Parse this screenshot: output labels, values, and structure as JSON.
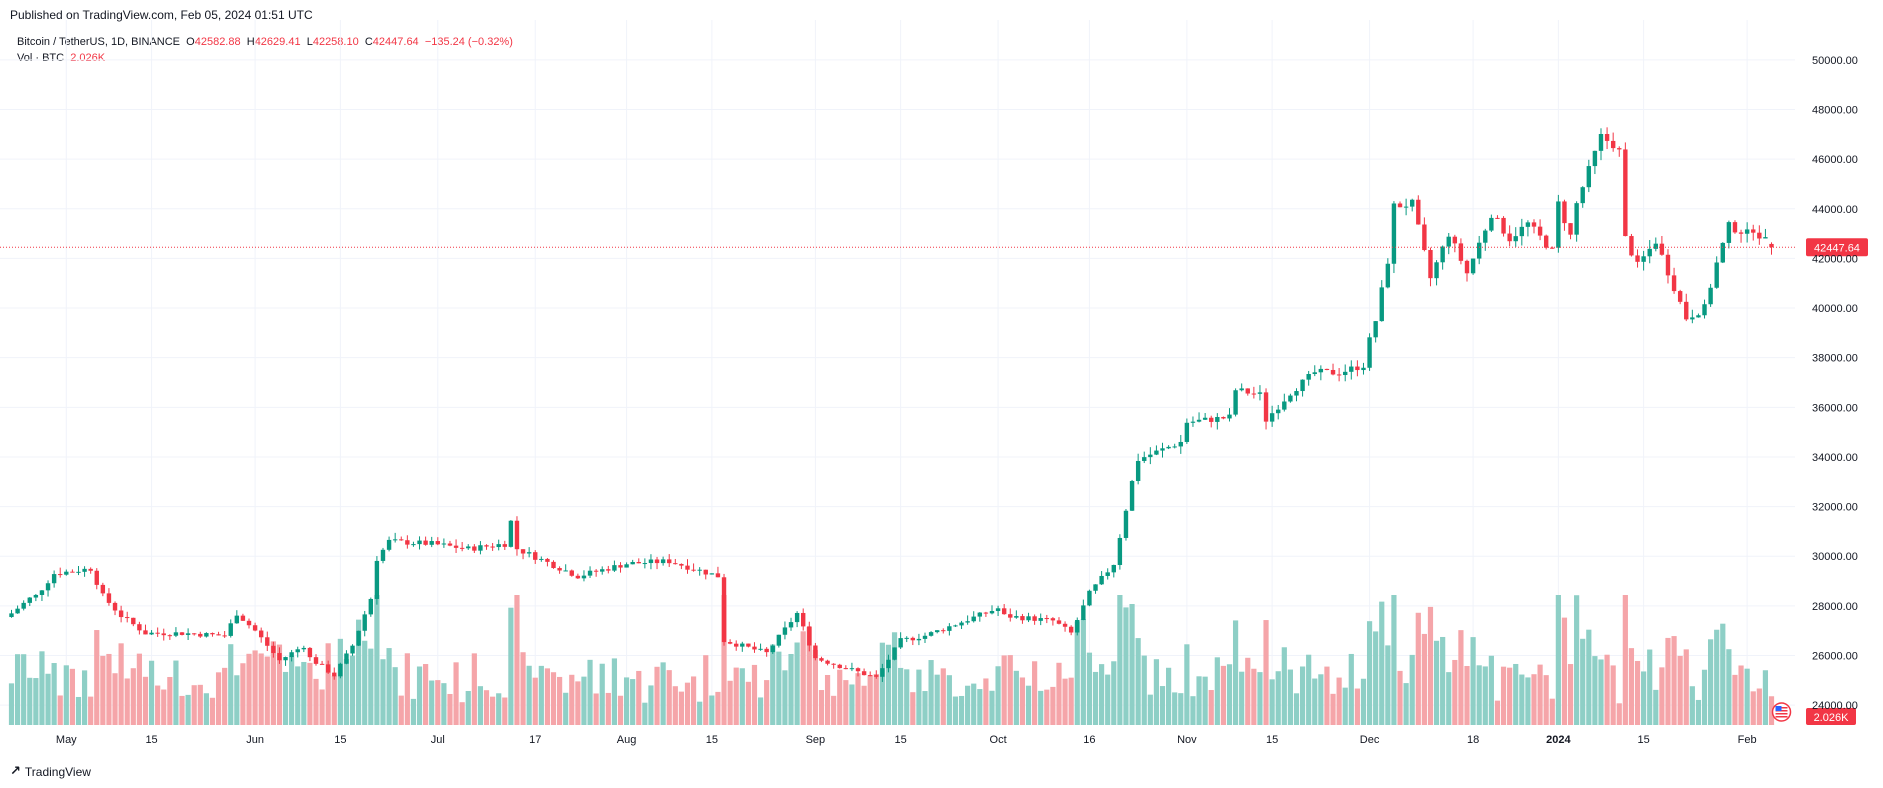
{
  "header": {
    "published": "Published on TradingView.com, Feb 05, 2024 01:51 UTC"
  },
  "legend": {
    "symbol": "Bitcoin / TetherUS, 1D, BINANCE",
    "open_label": "O",
    "open": "42582.88",
    "high_label": "H",
    "high": "42629.41",
    "low_label": "L",
    "low": "42258.10",
    "close_label": "C",
    "close": "42447.64",
    "change": "−135.24 (−0.32%)",
    "vol_label": "Vol · BTC",
    "vol_value": "2.026K"
  },
  "footer": {
    "brand": "TradingView",
    "logo_icon": "tradingview-logo-icon"
  },
  "colors": {
    "up": "#089981",
    "down": "#f23645",
    "vol_up": "#8ecfc6",
    "vol_down": "#f5a5a9",
    "grid": "#f0f3fa",
    "text": "#131722"
  },
  "chart_data": {
    "type": "candlestick",
    "symbol": "Bitcoin / TetherUS",
    "interval": "1D",
    "exchange": "BINANCE",
    "start_date": "2023-04-22",
    "y_axis": {
      "ticks": [
        "24000.00",
        "26000.00",
        "28000.00",
        "30000.00",
        "32000.00",
        "34000.00",
        "36000.00",
        "38000.00",
        "40000.00",
        "42000.00",
        "44000.00",
        "46000.00",
        "48000.00",
        "50000.00"
      ],
      "range": [
        23200,
        50800
      ]
    },
    "x_axis": {
      "ticks": [
        {
          "date": "2023-05-01",
          "label": "May"
        },
        {
          "date": "2023-05-15",
          "label": "15"
        },
        {
          "date": "2023-06-01",
          "label": "Jun"
        },
        {
          "date": "2023-06-15",
          "label": "15"
        },
        {
          "date": "2023-07-01",
          "label": "Jul"
        },
        {
          "date": "2023-07-17",
          "label": "17"
        },
        {
          "date": "2023-08-01",
          "label": "Aug"
        },
        {
          "date": "2023-08-15",
          "label": "15"
        },
        {
          "date": "2023-09-01",
          "label": "Sep"
        },
        {
          "date": "2023-09-15",
          "label": "15"
        },
        {
          "date": "2023-10-01",
          "label": "Oct"
        },
        {
          "date": "2023-10-16",
          "label": "16"
        },
        {
          "date": "2023-11-01",
          "label": "Nov"
        },
        {
          "date": "2023-11-15",
          "label": "15"
        },
        {
          "date": "2023-12-01",
          "label": "Dec"
        },
        {
          "date": "2023-12-18",
          "label": "18"
        },
        {
          "date": "2024-01-01",
          "label": "2024"
        },
        {
          "date": "2024-01-15",
          "label": "15"
        },
        {
          "date": "2024-02-01",
          "label": "Feb"
        }
      ]
    },
    "last_price": "42447.64",
    "last_volume": "2.026K",
    "close_anchors": [
      [
        "2023-04-22",
        27700
      ],
      [
        "2023-04-25",
        28300
      ],
      [
        "2023-04-26",
        28400
      ],
      [
        "2023-04-29",
        29300
      ],
      [
        "2023-05-05",
        29500
      ],
      [
        "2023-05-07",
        28400
      ],
      [
        "2023-05-10",
        27600
      ],
      [
        "2023-05-14",
        26900
      ],
      [
        "2023-05-20",
        26900
      ],
      [
        "2023-05-27",
        26800
      ],
      [
        "2023-05-29",
        27700
      ],
      [
        "2023-06-01",
        27000
      ],
      [
        "2023-06-05",
        25800
      ],
      [
        "2023-06-09",
        26400
      ],
      [
        "2023-06-10",
        25900
      ],
      [
        "2023-06-14",
        25200
      ],
      [
        "2023-06-17",
        26400
      ],
      [
        "2023-06-20",
        28300
      ],
      [
        "2023-06-21",
        29900
      ],
      [
        "2023-06-23",
        30600
      ],
      [
        "2023-06-30",
        30500
      ],
      [
        "2023-07-06",
        30300
      ],
      [
        "2023-07-12",
        30500
      ],
      [
        "2023-07-13",
        31400
      ],
      [
        "2023-07-14",
        30300
      ],
      [
        "2023-07-24",
        29200
      ],
      [
        "2023-08-01",
        29700
      ],
      [
        "2023-08-08",
        29800
      ],
      [
        "2023-08-16",
        29200
      ],
      [
        "2023-08-17",
        26600
      ],
      [
        "2023-08-24",
        26100
      ],
      [
        "2023-08-29",
        27700
      ],
      [
        "2023-09-01",
        25900
      ],
      [
        "2023-09-11",
        25100
      ],
      [
        "2023-09-15",
        26600
      ],
      [
        "2023-09-19",
        26800
      ],
      [
        "2023-10-01",
        27900
      ],
      [
        "2023-10-02",
        27600
      ],
      [
        "2023-10-10",
        27400
      ],
      [
        "2023-10-13",
        26900
      ],
      [
        "2023-10-16",
        28500
      ],
      [
        "2023-10-20",
        29700
      ],
      [
        "2023-10-23",
        33000
      ],
      [
        "2023-10-24",
        33900
      ],
      [
        "2023-10-31",
        34600
      ],
      [
        "2023-11-01",
        35400
      ],
      [
        "2023-11-08",
        35600
      ],
      [
        "2023-11-09",
        36700
      ],
      [
        "2023-11-13",
        36500
      ],
      [
        "2023-11-14",
        35500
      ],
      [
        "2023-11-18",
        36600
      ],
      [
        "2023-11-22",
        37400
      ],
      [
        "2023-11-26",
        37400
      ],
      [
        "2023-11-30",
        37700
      ],
      [
        "2023-12-01",
        38700
      ],
      [
        "2023-12-02",
        39500
      ],
      [
        "2023-12-04",
        41900
      ],
      [
        "2023-12-05",
        44100
      ],
      [
        "2023-12-08",
        44200
      ],
      [
        "2023-12-11",
        41200
      ],
      [
        "2023-12-14",
        43000
      ],
      [
        "2023-12-17",
        41400
      ],
      [
        "2023-12-21",
        43800
      ],
      [
        "2023-12-24",
        42800
      ],
      [
        "2023-12-27",
        43400
      ],
      [
        "2023-12-31",
        42300
      ],
      [
        "2024-01-01",
        44200
      ],
      [
        "2024-01-03",
        42900
      ],
      [
        "2024-01-04",
        44200
      ],
      [
        "2024-01-08",
        46900
      ],
      [
        "2024-01-10",
        46600
      ],
      [
        "2024-01-11",
        46300
      ],
      [
        "2024-01-12",
        42800
      ],
      [
        "2024-01-14",
        41700
      ],
      [
        "2024-01-17",
        42700
      ],
      [
        "2024-01-22",
        39600
      ],
      [
        "2024-01-25",
        40000
      ],
      [
        "2024-01-27",
        41800
      ],
      [
        "2024-01-29",
        43300
      ],
      [
        "2024-02-01",
        43000
      ],
      [
        "2024-02-02",
        43200
      ],
      [
        "2024-02-05",
        42447
      ]
    ],
    "volume_scale_k": 50
  }
}
